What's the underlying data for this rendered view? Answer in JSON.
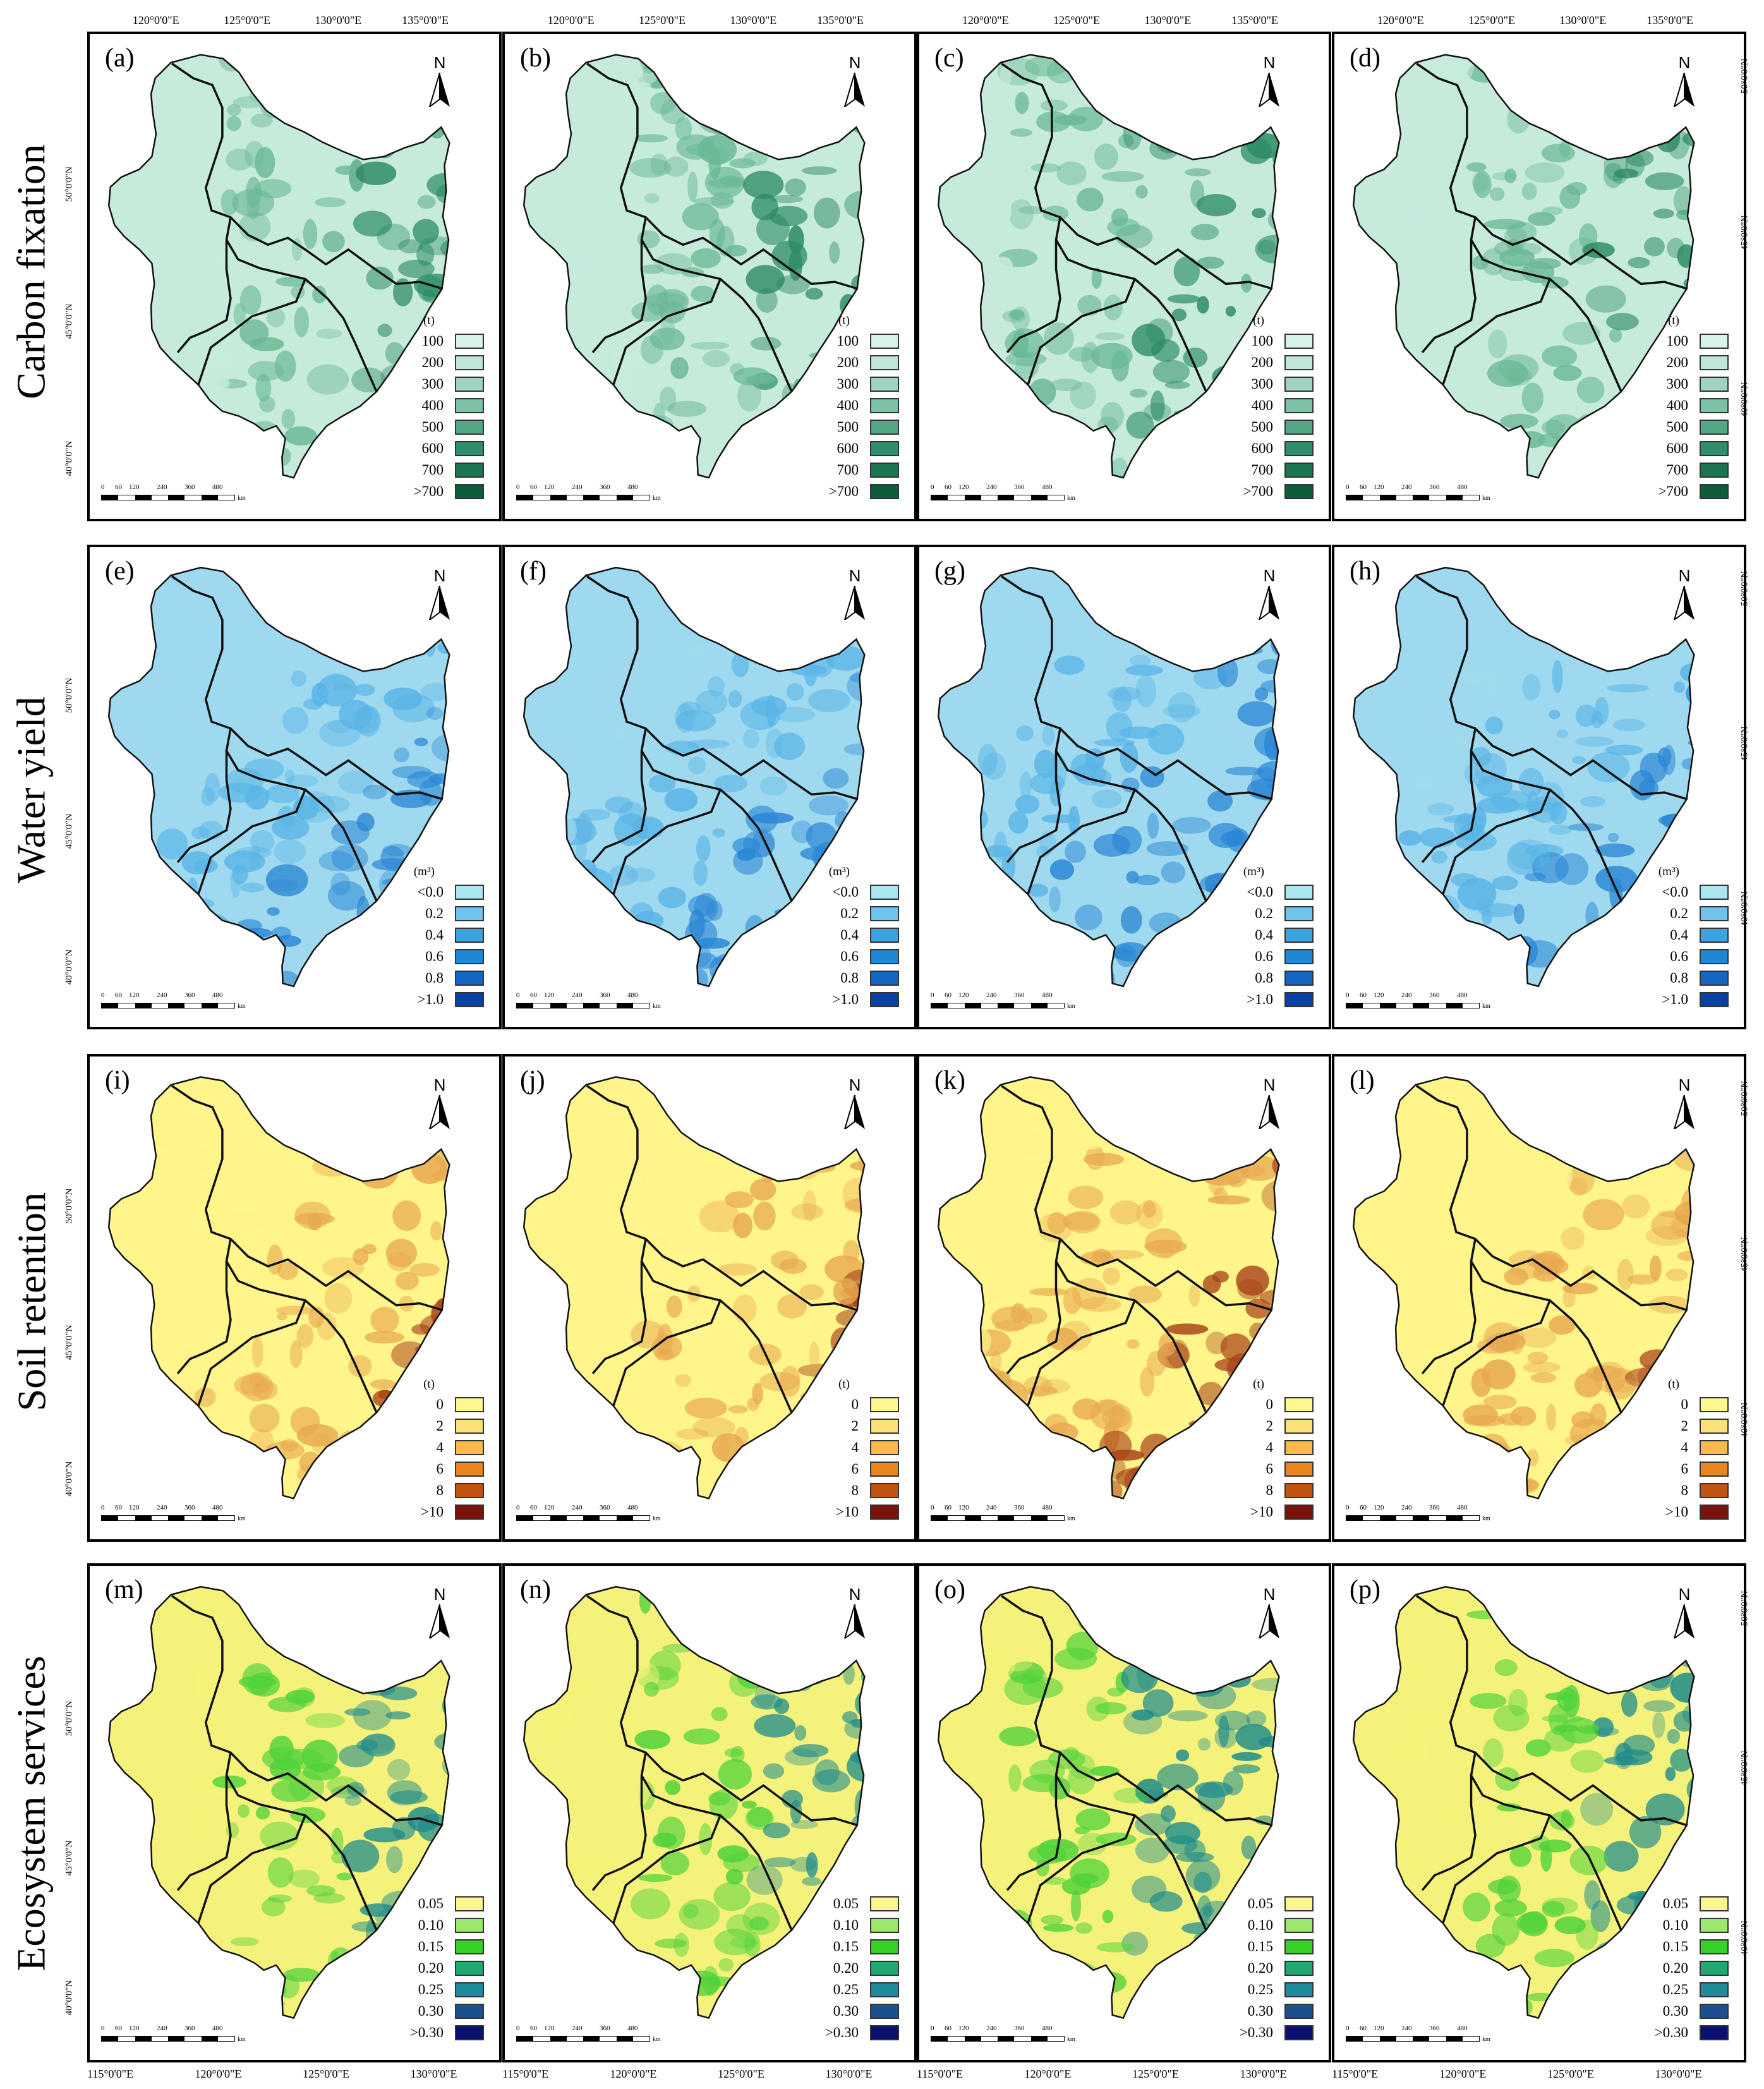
{
  "row_labels": [
    "Carbon fixation",
    "Water yield",
    "Soil retention",
    "Ecosystem services"
  ],
  "panel_letters": [
    "(a)",
    "(b)",
    "(c)",
    "(d)",
    "(e)",
    "(f)",
    "(g)",
    "(h)",
    "(i)",
    "(j)",
    "(k)",
    "(l)",
    "(m)",
    "(n)",
    "(o)",
    "(p)"
  ],
  "north_label": "N",
  "top_ticks": [
    "120°0'0\"E",
    "125°0'0\"E",
    "130°0'0\"E",
    "135°0'0\"E"
  ],
  "bottom_ticks": [
    "115°0'0\"E",
    "120°0'0\"E",
    "125°0'0\"E",
    "130°0'0\"E"
  ],
  "left_lat_ticks": [
    "50°0'0\"N",
    "45°0'0\"N",
    "40°0'0\"N"
  ],
  "right_lat_ticks": [
    "50°0'0\"N",
    "45°0'0\"N",
    "40°0'0\"N"
  ],
  "scale": {
    "numbers": [
      "0",
      "60",
      "120",
      "240",
      "360",
      "480"
    ],
    "unit": "km"
  },
  "legends": [
    {
      "unit": "(t)",
      "items": [
        {
          "label": "100",
          "color": "#d8f2e8"
        },
        {
          "label": "200",
          "color": "#bfe6d6"
        },
        {
          "label": "300",
          "color": "#9fd4bf"
        },
        {
          "label": "400",
          "color": "#7cc2a6"
        },
        {
          "label": "500",
          "color": "#52a884"
        },
        {
          "label": "600",
          "color": "#2f8f68"
        },
        {
          "label": "700",
          "color": "#1b7550"
        },
        {
          "label": ">700",
          "color": "#0d5c3a"
        }
      ]
    },
    {
      "unit": "(m³)",
      "items": [
        {
          "label": "<0.0",
          "color": "#a8e6f0"
        },
        {
          "label": "0.2",
          "color": "#6ec4ec"
        },
        {
          "label": "0.4",
          "color": "#3aa3e0"
        },
        {
          "label": "0.6",
          "color": "#1f87d6"
        },
        {
          "label": "0.8",
          "color": "#1566c4"
        },
        {
          "label": ">1.0",
          "color": "#0a3fa8"
        }
      ]
    },
    {
      "unit": "(t)",
      "items": [
        {
          "label": "0",
          "color": "#fff890"
        },
        {
          "label": "2",
          "color": "#fde07a"
        },
        {
          "label": "4",
          "color": "#f8bb48"
        },
        {
          "label": "6",
          "color": "#e9871e"
        },
        {
          "label": "8",
          "color": "#c25411"
        },
        {
          "label": ">10",
          "color": "#7d1208"
        }
      ]
    },
    {
      "unit": "",
      "items": [
        {
          "label": "0.05",
          "color": "#fbf68c"
        },
        {
          "label": "0.10",
          "color": "#9be86a"
        },
        {
          "label": "0.15",
          "color": "#37d02a"
        },
        {
          "label": "0.20",
          "color": "#22a870"
        },
        {
          "label": "0.25",
          "color": "#1f8c9c"
        },
        {
          "label": "0.30",
          "color": "#1b4f8e"
        },
        {
          "label": ">0.30",
          "color": "#0a1070"
        }
      ]
    }
  ],
  "map_colors": [
    {
      "base": "#c6ebdb",
      "mid": "#6ab894",
      "high": "#2c8b62"
    },
    {
      "base": "#9fd9ef",
      "mid": "#58b4e6",
      "high": "#2a86d4"
    },
    {
      "base": "#fff58a",
      "mid": "#e8a850",
      "high": "#a9441a"
    },
    {
      "base": "#f4f27a",
      "mid": "#4fd23a",
      "high": "#1f8c8c"
    }
  ]
}
